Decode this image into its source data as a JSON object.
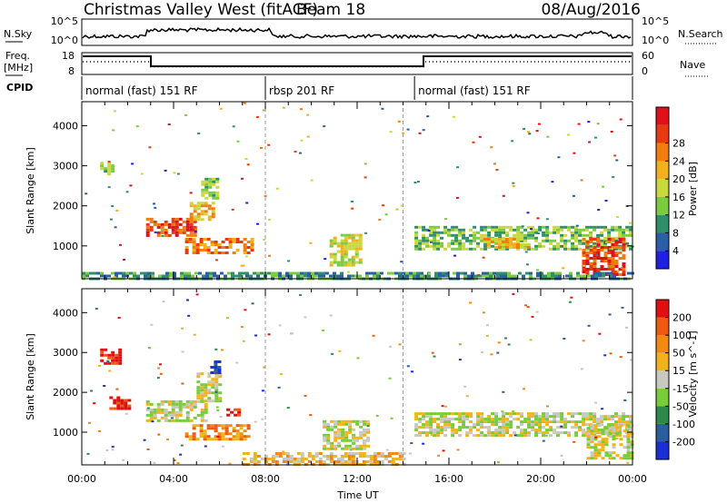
{
  "header": {
    "title": "Christmas Valley West (fitACF)",
    "beam": "Beam 18",
    "date": "08/Aug/2016"
  },
  "summary": {
    "nsky_label": "N.Sky",
    "nsky_ticks": [
      "10^5",
      "10^0"
    ],
    "nsearch_label": "N.Search",
    "nsearch_ticks": [
      "10^5",
      "10^0"
    ],
    "freq_label": "Freq.",
    "freq_unit": "[MHz]",
    "freq_ticks": [
      "18",
      "8"
    ],
    "nave_label": "Nave",
    "nave_ticks": [
      "60",
      "0"
    ],
    "cpid_label": "CPID",
    "cpid_segments": [
      {
        "label": "normal (fast) 151 RF",
        "start_h": 0,
        "end_h": 8
      },
      {
        "label": "rbsp 201 RF",
        "start_h": 8,
        "end_h": 14.5
      },
      {
        "label": "normal (fast) 151 RF",
        "start_h": 14.5,
        "end_h": 24
      }
    ]
  },
  "chart_data": [
    {
      "type": "heatmap",
      "name": "power",
      "ylabel": "Slant Range [km]",
      "yticks": [
        1000,
        2000,
        3000,
        4000
      ],
      "ylim": [
        180,
        4600
      ],
      "colorbar": {
        "label": "Power [dB]",
        "ticks": [
          4,
          8,
          12,
          16,
          20,
          24,
          28
        ],
        "colors": [
          "#1f1fe6",
          "#2a5fa8",
          "#2f8f6a",
          "#7acb3e",
          "#c9d83a",
          "#f2b01a",
          "#f27d0c",
          "#e83a10",
          "#e0101a"
        ]
      },
      "regions": [
        {
          "t0": 0.8,
          "t1": 1.3,
          "r0": 2800,
          "r1": 3100,
          "level": 3
        },
        {
          "t0": 2.8,
          "t1": 5.0,
          "r0": 1250,
          "r1": 1700,
          "level": 7
        },
        {
          "t0": 4.7,
          "t1": 5.7,
          "r0": 1650,
          "r1": 2100,
          "level": 5
        },
        {
          "t0": 5.2,
          "t1": 5.9,
          "r0": 2200,
          "r1": 2700,
          "level": 3
        },
        {
          "t0": 4.5,
          "t1": 7.4,
          "r0": 850,
          "r1": 1200,
          "level": 6
        },
        {
          "t0": 10.8,
          "t1": 12.2,
          "r0": 500,
          "r1": 1300,
          "level": 4
        },
        {
          "t0": 14.5,
          "t1": 24.0,
          "r0": 900,
          "r1": 1500,
          "level": 3
        },
        {
          "t0": 17.5,
          "t1": 19.5,
          "r0": 950,
          "r1": 1200,
          "level": 5
        },
        {
          "t0": 21.8,
          "t1": 23.7,
          "r0": 300,
          "r1": 1200,
          "level": 7
        },
        {
          "t0": 0.0,
          "t1": 24.0,
          "r0": 180,
          "r1": 350,
          "level": 2
        }
      ]
    },
    {
      "type": "heatmap",
      "name": "velocity",
      "xlabel": "Time UT",
      "ylabel": "Slant Range [km]",
      "yticks": [
        1000,
        2000,
        3000,
        4000
      ],
      "ylim": [
        180,
        4600
      ],
      "xticks": [
        "00:00",
        "04:00",
        "08:00",
        "12:00",
        "16:00",
        "20:00",
        "00:00"
      ],
      "colorbar": {
        "label": "Velocity [m s^-1]",
        "ticks": [
          "200",
          "100",
          "50",
          "15",
          "-15",
          "-50",
          "-100",
          "-200"
        ],
        "colors": [
          "#1b2fd6",
          "#2b5e9e",
          "#2e8a4a",
          "#78cc3a",
          "#c8c8c0",
          "#f2b21c",
          "#f28a12",
          "#ef5a10",
          "#e01010"
        ]
      },
      "regions": [
        {
          "t0": 0.8,
          "t1": 1.6,
          "r0": 2700,
          "r1": 3100,
          "level": 8
        },
        {
          "t0": 1.2,
          "t1": 2.0,
          "r0": 1600,
          "r1": 1900,
          "level": 8
        },
        {
          "t0": 2.8,
          "t1": 5.4,
          "r0": 1300,
          "r1": 1800,
          "level": 4
        },
        {
          "t0": 5.0,
          "t1": 6.0,
          "r0": 1800,
          "r1": 2500,
          "level": 4
        },
        {
          "t0": 5.6,
          "t1": 6.0,
          "r0": 2500,
          "r1": 2800,
          "level": 0
        },
        {
          "t0": 6.3,
          "t1": 6.9,
          "r0": 1400,
          "r1": 1600,
          "level": 8
        },
        {
          "t0": 4.5,
          "t1": 7.3,
          "r0": 850,
          "r1": 1200,
          "level": 6
        },
        {
          "t0": 7.0,
          "t1": 14.0,
          "r0": 200,
          "r1": 500,
          "level": 5
        },
        {
          "t0": 10.5,
          "t1": 12.5,
          "r0": 600,
          "r1": 1300,
          "level": 4
        },
        {
          "t0": 14.5,
          "t1": 24.0,
          "r0": 900,
          "r1": 1500,
          "level": 4
        },
        {
          "t0": 22.0,
          "t1": 24.0,
          "r0": 350,
          "r1": 1200,
          "level": 4
        }
      ]
    }
  ]
}
